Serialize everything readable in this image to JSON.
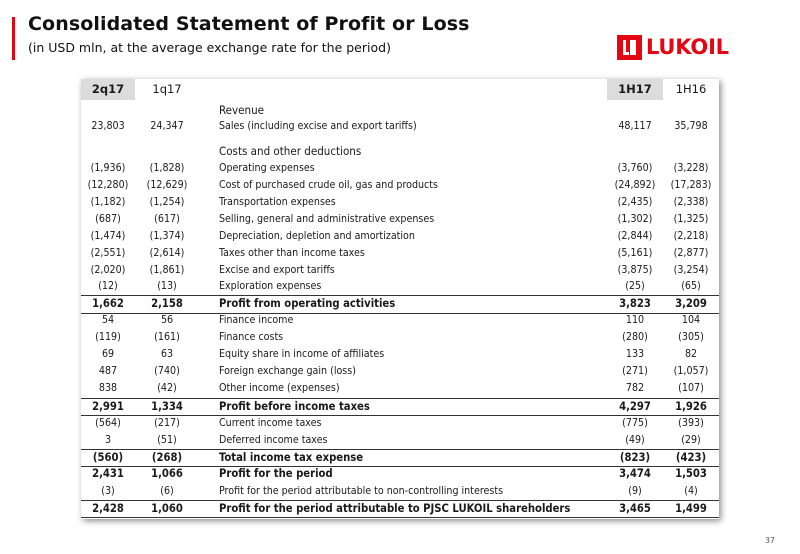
{
  "header": {
    "title": "Consolidated Statement of Profit or Loss",
    "subtitle": "(in USD mln, at the average exchange rate for the period)",
    "logo_text": "LUKOIL"
  },
  "colors": {
    "accent": "#e30613",
    "header_shade": "#dcdcdc"
  },
  "table": {
    "columns": [
      "2q17",
      "1q17",
      "1H17",
      "1H16"
    ],
    "rows": [
      {
        "label": "Revenue",
        "kind": "section",
        "v": [
          "",
          "",
          "",
          ""
        ]
      },
      {
        "label": "Sales (including excise and export tariffs)",
        "kind": "normal",
        "v": [
          "23,803",
          "24,347",
          "48,117",
          "35,798"
        ]
      },
      {
        "label": "Costs and other deductions",
        "kind": "section",
        "v": [
          "",
          "",
          "",
          ""
        ]
      },
      {
        "label": "Operating expenses",
        "kind": "normal",
        "v": [
          "(1,936)",
          "(1,828)",
          "(3,760)",
          "(3,228)"
        ]
      },
      {
        "label": "Cost of purchased crude oil, gas and products",
        "kind": "normal",
        "v": [
          "(12,280)",
          "(12,629)",
          "(24,892)",
          "(17,283)"
        ]
      },
      {
        "label": "Transportation expenses",
        "kind": "normal",
        "v": [
          "(1,182)",
          "(1,254)",
          "(2,435)",
          "(2,338)"
        ]
      },
      {
        "label": "Selling, general and administrative expenses",
        "kind": "normal",
        "v": [
          "(687)",
          "(617)",
          "(1,302)",
          "(1,325)"
        ]
      },
      {
        "label": "Depreciation, depletion and amortization",
        "kind": "normal",
        "v": [
          "(1,474)",
          "(1,374)",
          "(2,844)",
          "(2,218)"
        ]
      },
      {
        "label": "Taxes other than income taxes",
        "kind": "normal",
        "v": [
          "(2,551)",
          "(2,614)",
          "(5,161)",
          "(2,877)"
        ]
      },
      {
        "label": "Excise and export tariffs",
        "kind": "normal",
        "v": [
          "(2,020)",
          "(1,861)",
          "(3,875)",
          "(3,254)"
        ]
      },
      {
        "label": "Exploration expenses",
        "kind": "normal",
        "v": [
          "(12)",
          "(13)",
          "(25)",
          "(65)"
        ]
      },
      {
        "label": "Profit from operating activities",
        "kind": "total",
        "v": [
          "1,662",
          "2,158",
          "3,823",
          "3,209"
        ]
      },
      {
        "label": "Finance income",
        "kind": "normal",
        "v": [
          "54",
          "56",
          "110",
          "104"
        ]
      },
      {
        "label": "Finance costs",
        "kind": "normal",
        "v": [
          "(119)",
          "(161)",
          "(280)",
          "(305)"
        ]
      },
      {
        "label": "Equity share in income of affiliates",
        "kind": "normal",
        "v": [
          "69",
          "63",
          "133",
          "82"
        ]
      },
      {
        "label": "Foreign exchange gain (loss)",
        "kind": "normal",
        "v": [
          "487",
          "(740)",
          "(271)",
          "(1,057)"
        ]
      },
      {
        "label": "Other income (expenses)",
        "kind": "normal",
        "v": [
          "838",
          "(42)",
          "782",
          "(107)"
        ]
      },
      {
        "label": "Profit before income taxes",
        "kind": "total",
        "v": [
          "2,991",
          "1,334",
          "4,297",
          "1,926"
        ]
      },
      {
        "label": "Current income taxes",
        "kind": "normal",
        "v": [
          "(564)",
          "(217)",
          "(775)",
          "(393)"
        ]
      },
      {
        "label": "Deferred income taxes",
        "kind": "normal",
        "v": [
          "3",
          "(51)",
          "(49)",
          "(29)"
        ]
      },
      {
        "label": "Total income tax expense",
        "kind": "total",
        "v": [
          "(560)",
          "(268)",
          "(823)",
          "(423)"
        ]
      },
      {
        "label": "Profit for the period",
        "kind": "bold",
        "v": [
          "2,431",
          "1,066",
          "3,474",
          "1,503"
        ]
      },
      {
        "label": "Profit for the period attributable to non-controlling interests",
        "kind": "normal",
        "v": [
          "(3)",
          "(6)",
          "(9)",
          "(4)"
        ]
      },
      {
        "label": "Profit for the period attributable to PJSC LUKOIL shareholders",
        "kind": "total",
        "v": [
          "2,428",
          "1,060",
          "3,465",
          "1,499"
        ]
      }
    ]
  },
  "footer": {
    "page_number": "37"
  }
}
